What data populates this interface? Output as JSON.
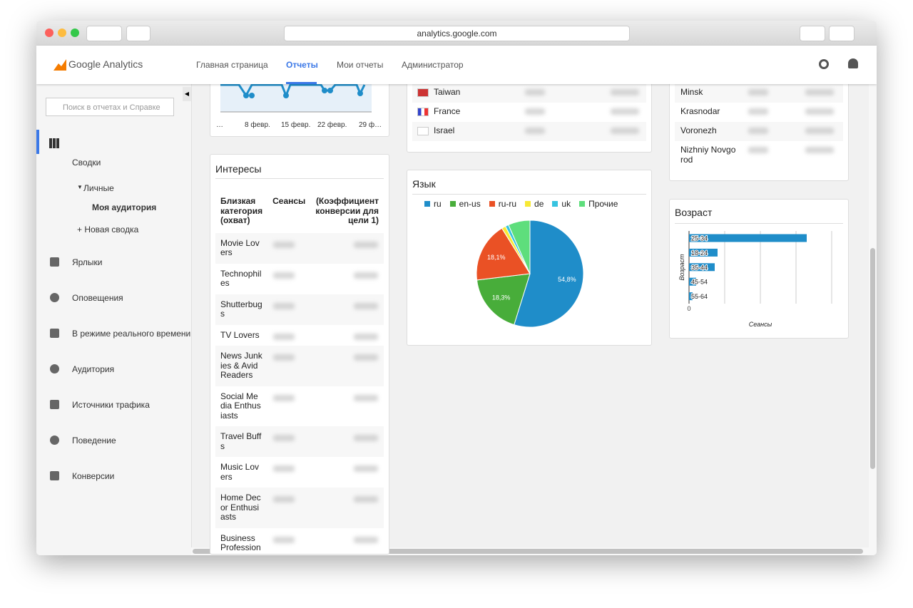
{
  "browser": {
    "url": "analytics.google.com"
  },
  "header": {
    "logo": "Google Analytics",
    "nav": [
      "Главная страница",
      "Отчеты",
      "Мои отчеты",
      "Администратор"
    ],
    "active": 1
  },
  "sidebar": {
    "search": "Поиск в отчетах и Справке",
    "summary": "Сводки",
    "personal": "Личные",
    "audience": "Моя аудитория",
    "new": "+ Новая сводка",
    "items": [
      "Ярлыки",
      "Оповещения",
      "В режиме реального времени",
      "Аудитория",
      "Источники трафика",
      "Поведение",
      "Конверсии"
    ]
  },
  "timeline": {
    "x_labels": [
      "…",
      "8 февр.",
      "15 февр.",
      "22 февр.",
      "29 ф…"
    ]
  },
  "countries": [
    "Taiwan",
    "France",
    "Israel"
  ],
  "cities": [
    "Minsk",
    "Krasnodar",
    "Voronezh",
    "Nizhniy Novgorod"
  ],
  "interests": {
    "title": "Интересы",
    "columns": [
      "Близкая категория (охват)",
      "Сеансы",
      "(Коэффициент конверсии для цели 1)"
    ],
    "rows": [
      "Movie Lovers",
      "Technophiles",
      "Shutterbugs",
      "TV Lovers",
      "News Junkies & Avid Readers",
      "Social Media Enthusiasts",
      "Travel Buffs",
      "Music Lovers",
      "Home Decor Enthusiasts",
      "Business Profession"
    ]
  },
  "chart_data": [
    {
      "type": "pie",
      "title": "Язык",
      "categories": [
        "ru",
        "en-us",
        "ru-ru",
        "de",
        "uk",
        "Прочие"
      ],
      "values": [
        54.8,
        18.3,
        18.1,
        1.2,
        1.0,
        6.6
      ],
      "value_labels": [
        "54,8%",
        "18,3%",
        "18,1%",
        null,
        null,
        null
      ],
      "colors": [
        "#1f8dc9",
        "#48ad3a",
        "#ea5125",
        "#f7e935",
        "#36c3e0",
        "#5ede7c"
      ]
    },
    {
      "type": "bar",
      "title": "Возраст",
      "categories": [
        "25-34",
        "18-24",
        "35-44",
        "45-54",
        "55-64"
      ],
      "values": [
        165,
        40,
        36,
        10,
        5
      ],
      "xlim": [
        0,
        200
      ],
      "xticks": [
        0,
        {
          "value": 50,
          "label": null
        },
        {
          "value": 100,
          "label": null
        },
        {
          "value": 150,
          "label": null
        },
        {
          "value": 200,
          "label": null
        }
      ],
      "xlabel": "Сеансы",
      "ylabel": "Возраст",
      "color": "#1f8dc9"
    }
  ]
}
